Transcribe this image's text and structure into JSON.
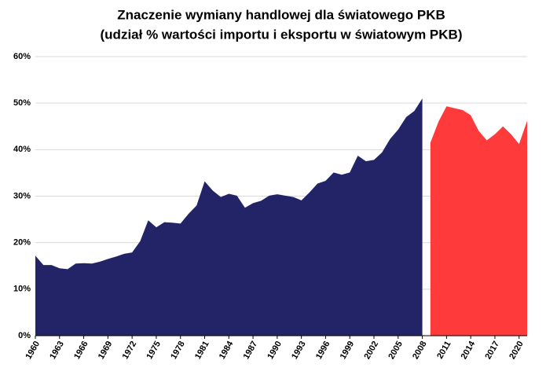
{
  "chart_data": {
    "type": "area",
    "title": "Znaczenie wymiany handlowej dla światowego PKB",
    "subtitle": "(udział % wartości importu i eksportu w światowym PKB)",
    "x": [
      1960,
      1961,
      1962,
      1963,
      1964,
      1965,
      1966,
      1967,
      1968,
      1969,
      1970,
      1971,
      1972,
      1973,
      1974,
      1975,
      1976,
      1977,
      1978,
      1979,
      1980,
      1981,
      1982,
      1983,
      1984,
      1985,
      1986,
      1987,
      1988,
      1989,
      1990,
      1991,
      1992,
      1993,
      1994,
      1995,
      1996,
      1997,
      1998,
      1999,
      2000,
      2001,
      2002,
      2003,
      2004,
      2005,
      2006,
      2007,
      2008,
      2009,
      2010,
      2011,
      2012,
      2013,
      2014,
      2015,
      2016,
      2017,
      2018,
      2019,
      2020,
      2021
    ],
    "series": [
      {
        "color": "#232468",
        "values": [
          17.2,
          15.2,
          15.2,
          14.5,
          14.3,
          15.5,
          15.6,
          15.5,
          15.9,
          16.5,
          17.0,
          17.6,
          17.9,
          20.3,
          24.8,
          23.3,
          24.4,
          24.3,
          24.1,
          26.2,
          28.0,
          33.2,
          31.2,
          29.8,
          30.5,
          30.1,
          27.5,
          28.5,
          29.0,
          30.1,
          30.4,
          30.1,
          29.8,
          29.1,
          30.8,
          32.7,
          33.3,
          35.1,
          34.6,
          35.1,
          38.7,
          37.5,
          37.8,
          39.4,
          42.3,
          44.3,
          47.0,
          48.3,
          51.0,
          null,
          null,
          null,
          null,
          null,
          null,
          null,
          null,
          null,
          null,
          null,
          null,
          null
        ]
      },
      {
        "color": "#fe3a3a",
        "values": [
          null,
          null,
          null,
          null,
          null,
          null,
          null,
          null,
          null,
          null,
          null,
          null,
          null,
          null,
          null,
          null,
          null,
          null,
          null,
          null,
          null,
          null,
          null,
          null,
          null,
          null,
          null,
          null,
          null,
          null,
          null,
          null,
          null,
          null,
          null,
          null,
          null,
          null,
          null,
          null,
          null,
          null,
          null,
          null,
          null,
          null,
          null,
          null,
          null,
          41.5,
          46.0,
          49.3,
          48.9,
          48.5,
          47.4,
          44.0,
          42.0,
          43.3,
          45.0,
          43.3,
          41.2,
          46.2
        ]
      }
    ],
    "xlim": [
      1960,
      2021
    ],
    "xticks": [
      1960,
      1963,
      1966,
      1969,
      1972,
      1975,
      1978,
      1981,
      1984,
      1987,
      1990,
      1993,
      1996,
      1999,
      2002,
      2005,
      2008,
      2011,
      2014,
      2017,
      2020
    ],
    "ylim": [
      0,
      60
    ],
    "yticks": [
      {
        "value": 0,
        "label": "0%"
      },
      {
        "value": 10,
        "label": "10%"
      },
      {
        "value": 20,
        "label": "20%"
      },
      {
        "value": 30,
        "label": "30%"
      },
      {
        "value": 40,
        "label": "40%"
      },
      {
        "value": 50,
        "label": "50%"
      },
      {
        "value": 60,
        "label": "60%"
      }
    ],
    "grid": true
  }
}
